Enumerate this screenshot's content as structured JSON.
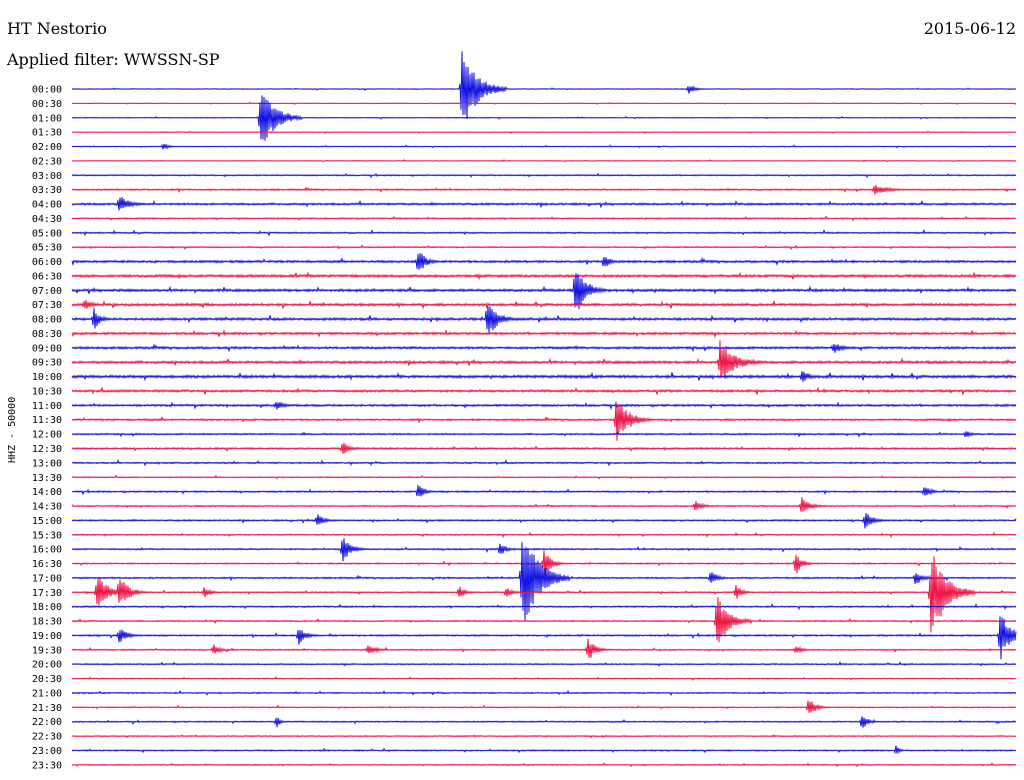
{
  "header": {
    "station": "HT Nestorio",
    "filter": "Applied filter: WWSSN-SP",
    "date": "2015-06-12"
  },
  "chart_data": {
    "type": "line",
    "ylabel": "HHZ - 50000",
    "colors": [
      "#1010e0",
      "#ee1144"
    ],
    "rows": [
      "00:00",
      "00:30",
      "01:00",
      "01:30",
      "02:00",
      "02:30",
      "03:00",
      "03:30",
      "04:00",
      "04:30",
      "05:00",
      "05:30",
      "06:00",
      "06:30",
      "07:00",
      "07:30",
      "08:00",
      "08:30",
      "09:00",
      "09:30",
      "10:00",
      "10:30",
      "11:00",
      "11:30",
      "12:00",
      "12:30",
      "13:00",
      "13:30",
      "14:00",
      "14:30",
      "15:00",
      "15:30",
      "16:00",
      "16:30",
      "17:00",
      "17:30",
      "18:00",
      "18:30",
      "19:00",
      "19:30",
      "20:00",
      "20:30",
      "21:00",
      "21:30",
      "22:00",
      "22:30",
      "23:00",
      "23:30"
    ],
    "x_range_minutes": [
      0,
      30
    ],
    "noise": [
      0.3,
      0.25,
      0.3,
      0.25,
      0.3,
      0.25,
      0.5,
      0.6,
      0.8,
      0.5,
      0.6,
      0.5,
      0.9,
      1.0,
      1.0,
      1.0,
      1.0,
      0.9,
      0.9,
      1.0,
      1.1,
      0.9,
      0.8,
      0.7,
      0.6,
      0.7,
      0.6,
      0.4,
      0.6,
      0.5,
      0.6,
      0.5,
      0.6,
      0.5,
      0.6,
      0.5,
      0.6,
      0.5,
      0.6,
      0.5,
      0.5,
      0.4,
      0.5,
      0.4,
      0.5,
      0.4,
      0.5,
      0.4
    ],
    "events": [
      {
        "row": 0,
        "minute": 12.4,
        "amplitude": 46,
        "length": 1.4
      },
      {
        "row": 0,
        "minute": 19.6,
        "amplitude": 5,
        "length": 0.6
      },
      {
        "row": 2,
        "minute": 6.0,
        "amplitude": 38,
        "length": 1.3
      },
      {
        "row": 4,
        "minute": 2.9,
        "amplitude": 4,
        "length": 0.5
      },
      {
        "row": 7,
        "minute": 25.5,
        "amplitude": 6,
        "length": 1.2
      },
      {
        "row": 8,
        "minute": 1.5,
        "amplitude": 10,
        "length": 0.9
      },
      {
        "row": 12,
        "minute": 11.0,
        "amplitude": 14,
        "length": 0.7
      },
      {
        "row": 12,
        "minute": 16.9,
        "amplitude": 7,
        "length": 0.7
      },
      {
        "row": 14,
        "minute": 16.0,
        "amplitude": 28,
        "length": 1.0
      },
      {
        "row": 15,
        "minute": 0.4,
        "amplitude": 6,
        "length": 0.8
      },
      {
        "row": 16,
        "minute": 0.7,
        "amplitude": 12,
        "length": 0.6
      },
      {
        "row": 16,
        "minute": 13.2,
        "amplitude": 20,
        "length": 1.0
      },
      {
        "row": 19,
        "minute": 20.6,
        "amplitude": 24,
        "length": 1.4
      },
      {
        "row": 18,
        "minute": 24.2,
        "amplitude": 6,
        "length": 1.0
      },
      {
        "row": 20,
        "minute": 23.2,
        "amplitude": 7,
        "length": 0.7
      },
      {
        "row": 22,
        "minute": 6.5,
        "amplitude": 5,
        "length": 0.8
      },
      {
        "row": 23,
        "minute": 17.3,
        "amplitude": 24,
        "length": 1.2
      },
      {
        "row": 24,
        "minute": 28.4,
        "amplitude": 5,
        "length": 0.5
      },
      {
        "row": 25,
        "minute": 8.6,
        "amplitude": 7,
        "length": 0.8
      },
      {
        "row": 28,
        "minute": 11.0,
        "amplitude": 8,
        "length": 0.6
      },
      {
        "row": 28,
        "minute": 27.1,
        "amplitude": 7,
        "length": 0.6
      },
      {
        "row": 29,
        "minute": 19.8,
        "amplitude": 6,
        "length": 0.7
      },
      {
        "row": 29,
        "minute": 23.2,
        "amplitude": 10,
        "length": 0.8
      },
      {
        "row": 30,
        "minute": 7.8,
        "amplitude": 7,
        "length": 0.6
      },
      {
        "row": 30,
        "minute": 25.2,
        "amplitude": 9,
        "length": 0.8
      },
      {
        "row": 32,
        "minute": 8.6,
        "amplitude": 14,
        "length": 0.8
      },
      {
        "row": 32,
        "minute": 13.6,
        "amplitude": 7,
        "length": 0.6
      },
      {
        "row": 33,
        "minute": 15.0,
        "amplitude": 14,
        "length": 0.7
      },
      {
        "row": 33,
        "minute": 23.0,
        "amplitude": 12,
        "length": 0.6
      },
      {
        "row": 34,
        "minute": 14.3,
        "amplitude": 56,
        "length": 1.5
      },
      {
        "row": 34,
        "minute": 20.3,
        "amplitude": 9,
        "length": 0.6
      },
      {
        "row": 34,
        "minute": 26.8,
        "amplitude": 8,
        "length": 0.7
      },
      {
        "row": 35,
        "minute": 0.8,
        "amplitude": 22,
        "length": 0.9
      },
      {
        "row": 35,
        "minute": 1.5,
        "amplitude": 18,
        "length": 0.9
      },
      {
        "row": 35,
        "minute": 4.2,
        "amplitude": 6,
        "length": 0.6
      },
      {
        "row": 35,
        "minute": 12.3,
        "amplitude": 7,
        "length": 0.6
      },
      {
        "row": 35,
        "minute": 13.8,
        "amplitude": 6,
        "length": 0.6
      },
      {
        "row": 35,
        "minute": 21.1,
        "amplitude": 8,
        "length": 0.6
      },
      {
        "row": 35,
        "minute": 27.3,
        "amplitude": 50,
        "length": 1.4
      },
      {
        "row": 37,
        "minute": 20.5,
        "amplitude": 28,
        "length": 1.1
      },
      {
        "row": 38,
        "minute": 1.5,
        "amplitude": 9,
        "length": 0.7
      },
      {
        "row": 38,
        "minute": 7.2,
        "amplitude": 10,
        "length": 0.7
      },
      {
        "row": 38,
        "minute": 29.5,
        "amplitude": 26,
        "length": 1.0
      },
      {
        "row": 39,
        "minute": 4.5,
        "amplitude": 6,
        "length": 0.6
      },
      {
        "row": 39,
        "minute": 9.4,
        "amplitude": 5,
        "length": 0.9
      },
      {
        "row": 39,
        "minute": 16.4,
        "amplitude": 12,
        "length": 0.7
      },
      {
        "row": 39,
        "minute": 23.0,
        "amplitude": 5,
        "length": 0.6
      },
      {
        "row": 43,
        "minute": 23.4,
        "amplitude": 10,
        "length": 0.7
      },
      {
        "row": 44,
        "minute": 6.5,
        "amplitude": 7,
        "length": 0.3
      },
      {
        "row": 44,
        "minute": 25.1,
        "amplitude": 8,
        "length": 0.6
      },
      {
        "row": 46,
        "minute": 26.2,
        "amplitude": 6,
        "length": 0.3
      }
    ]
  }
}
